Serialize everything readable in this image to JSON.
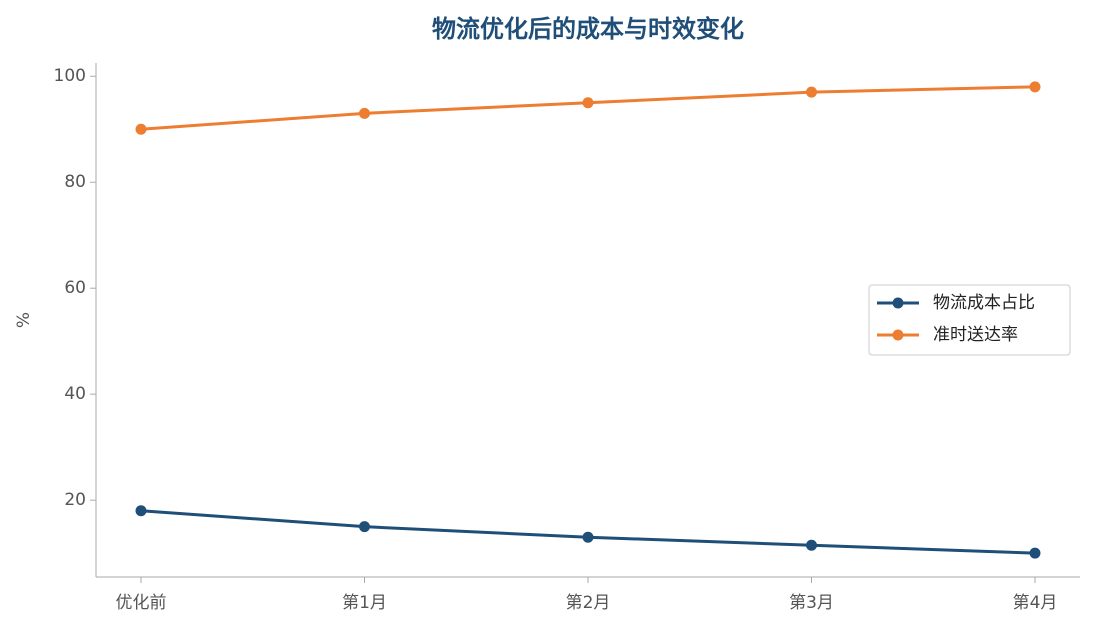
{
  "chart_data": {
    "type": "line",
    "title": "物流优化后的成本与时效变化",
    "y_label": "%",
    "categories": [
      "优化前",
      "第1月",
      "第2月",
      "第3月",
      "第4月"
    ],
    "series": [
      {
        "name": "物流成本占比",
        "color": "#1f4e79",
        "values": [
          18,
          15,
          13,
          11.5,
          10
        ]
      },
      {
        "name": "准时送达率",
        "color": "#ed7d31",
        "values": [
          90,
          93,
          95,
          97,
          98
        ]
      }
    ],
    "ylim": [
      5.5,
      102.5
    ],
    "yticks": [
      20,
      40,
      60,
      80,
      100
    ],
    "grid": false,
    "legend": "right"
  }
}
